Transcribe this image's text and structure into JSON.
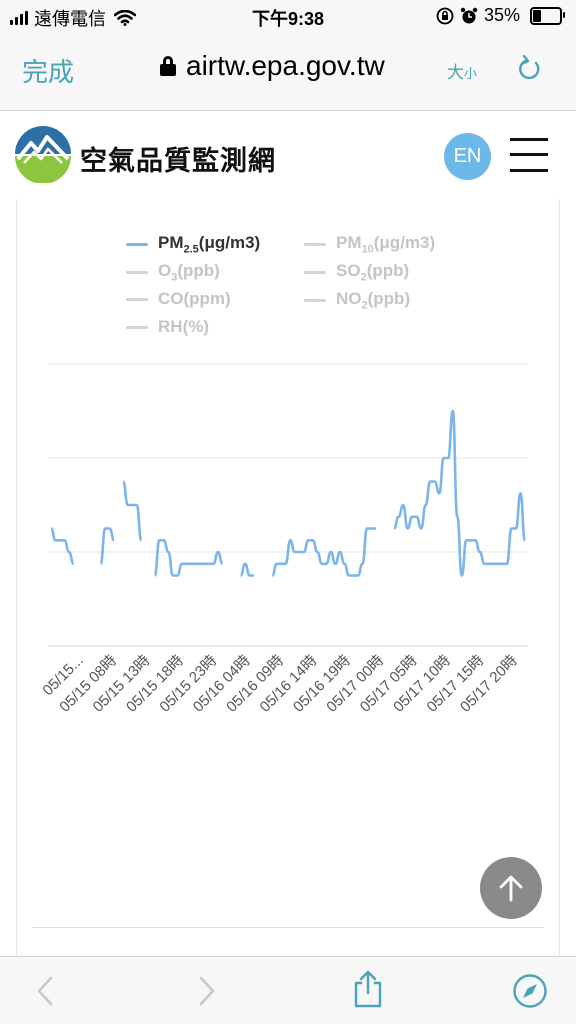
{
  "status_bar": {
    "carrier": "遠傳電信",
    "time": "下午9:38",
    "battery": "35%",
    "battery_level": 0.35
  },
  "address_bar": {
    "done_label": "完成",
    "url": "airtw.epa.gov.tw",
    "text_size_label": "大",
    "text_size_small": "小"
  },
  "site": {
    "title": "空氣品質監測網",
    "lang_button": "EN"
  },
  "legend": [
    {
      "name": "PM",
      "sub": "2.5",
      "unit": "(μg/m3)",
      "active": true
    },
    {
      "name": "PM",
      "sub": "10",
      "unit": "(μg/m3)",
      "active": false
    },
    {
      "name": "O",
      "sub": "3",
      "unit": "(ppb)",
      "active": false
    },
    {
      "name": "SO",
      "sub": "2",
      "unit": "(ppb)",
      "active": false
    },
    {
      "name": "CO",
      "sub": "",
      "unit": "(ppm)",
      "active": false
    },
    {
      "name": "NO",
      "sub": "2",
      "unit": "(ppb)",
      "active": false
    },
    {
      "name": "RH",
      "sub": "",
      "unit": "(%)",
      "active": false
    }
  ],
  "colors": {
    "accent": "#4aa3b8",
    "series": "#7cb5ec",
    "en_button": "#6cb8e8"
  },
  "chart_data": {
    "type": "line",
    "series": [
      {
        "name": "PM2.5(μg/m3)",
        "values": [
          10,
          9,
          9,
          9,
          8,
          7,
          null,
          null,
          null,
          null,
          null,
          7,
          10,
          10,
          9,
          null,
          14,
          12,
          12,
          12,
          9,
          null,
          null,
          6,
          9,
          9,
          8,
          6,
          6,
          7,
          7,
          7,
          7,
          7,
          7,
          7,
          7,
          8,
          7,
          null,
          null,
          null,
          6,
          7,
          6,
          6,
          null,
          null,
          null,
          6,
          7,
          7,
          7,
          9,
          8,
          8,
          8,
          9,
          9,
          8,
          7,
          7,
          8,
          7,
          8,
          7,
          6,
          6,
          6,
          7,
          10,
          10,
          10,
          null,
          null,
          null,
          10,
          11,
          12,
          10,
          11,
          11,
          10,
          12,
          14,
          14,
          13,
          16,
          16,
          20,
          11,
          6,
          9,
          9,
          9,
          8,
          7,
          7,
          7,
          7,
          7,
          7,
          10,
          10,
          13,
          9
        ]
      }
    ],
    "x_ticks": [
      "05/15...",
      "05/15 08時",
      "05/15 13時",
      "05/15 18時",
      "05/15 23時",
      "05/16 04時",
      "05/16 09時",
      "05/16 14時",
      "05/16 19時",
      "05/17 00時",
      "05/17 05時",
      "05/17 10時",
      "05/17 15時",
      "05/17 20時"
    ],
    "ylim": [
      0,
      24
    ],
    "grid": true
  },
  "icons": {
    "back": "chevron-left-icon",
    "forward": "chevron-right-icon",
    "share": "share-icon",
    "safari": "compass-icon",
    "scroll_top": "arrow-up-icon"
  }
}
